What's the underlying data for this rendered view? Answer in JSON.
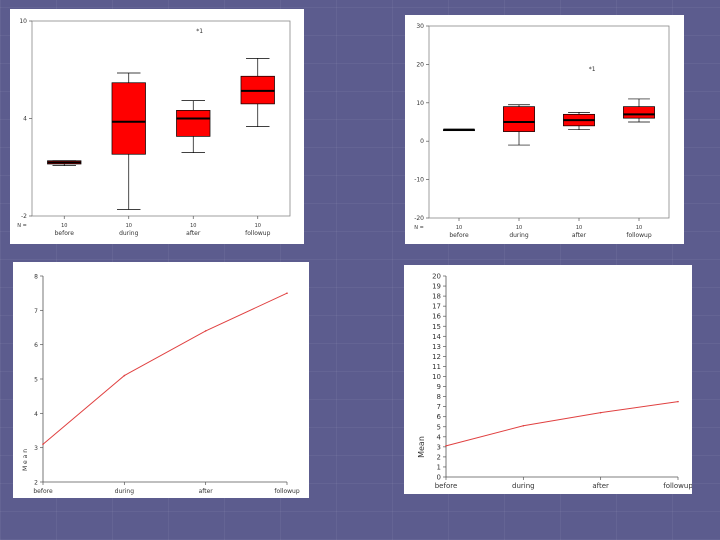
{
  "colors": {
    "box_fill": "#ff0000",
    "median": "#000000",
    "line": "#e04040",
    "slide_bg": "#5c5c8e"
  },
  "chart_data": [
    {
      "type": "box",
      "ylim": [
        -2,
        10
      ],
      "yticks": [
        -2,
        4,
        10
      ],
      "categories": [
        "before",
        "during",
        "after",
        "followup"
      ],
      "n_labels": [
        "10",
        "10",
        "10",
        "10"
      ],
      "n_prefix": "N =",
      "boxes": [
        {
          "category": "before",
          "min": 1.1,
          "q1": 1.2,
          "median": 1.3,
          "q3": 1.4,
          "max": 1.4
        },
        {
          "category": "during",
          "min": -1.6,
          "q1": 1.8,
          "median": 3.8,
          "q3": 6.2,
          "max": 6.8
        },
        {
          "category": "after",
          "min": 1.9,
          "q1": 2.9,
          "median": 4.0,
          "q3": 4.5,
          "max": 5.1
        },
        {
          "category": "followup",
          "min": 3.5,
          "q1": 4.9,
          "median": 5.7,
          "q3": 6.6,
          "max": 7.7
        }
      ],
      "annotation": "*1"
    },
    {
      "type": "box",
      "ylim": [
        -20,
        30
      ],
      "yticks": [
        -20,
        -10,
        0,
        10,
        20,
        30
      ],
      "categories": [
        "before",
        "during",
        "after",
        "followup"
      ],
      "n_labels": [
        "10",
        "10",
        "10",
        "10"
      ],
      "n_prefix": "N =",
      "boxes": [
        {
          "category": "before",
          "min": 3,
          "q1": 3,
          "median": 3,
          "q3": 3,
          "max": 3
        },
        {
          "category": "during",
          "min": -1,
          "q1": 2.5,
          "median": 5,
          "q3": 9,
          "max": 9.5
        },
        {
          "category": "after",
          "min": 3,
          "q1": 4,
          "median": 5.5,
          "q3": 7,
          "max": 7.5
        },
        {
          "category": "followup",
          "min": 5,
          "q1": 6,
          "median": 7,
          "q3": 9,
          "max": 11
        }
      ],
      "annotation": "*1"
    },
    {
      "type": "line",
      "x": [
        "before",
        "during",
        "after",
        "followup"
      ],
      "y": [
        3.1,
        5.1,
        6.4,
        7.5
      ],
      "ylim": [
        2,
        8
      ],
      "yticks": [
        2,
        3,
        4,
        5,
        6,
        7,
        8
      ],
      "ylabel": "M e a n"
    },
    {
      "type": "line",
      "x": [
        "before",
        "during",
        "after",
        "followup"
      ],
      "y": [
        3.1,
        5.1,
        6.4,
        7.5
      ],
      "ylim": [
        0,
        20
      ],
      "yticks": [
        0,
        1,
        2,
        3,
        4,
        5,
        6,
        7,
        8,
        9,
        10,
        11,
        12,
        13,
        14,
        15,
        16,
        17,
        18,
        19,
        20
      ],
      "ylabel": "Mean"
    }
  ]
}
